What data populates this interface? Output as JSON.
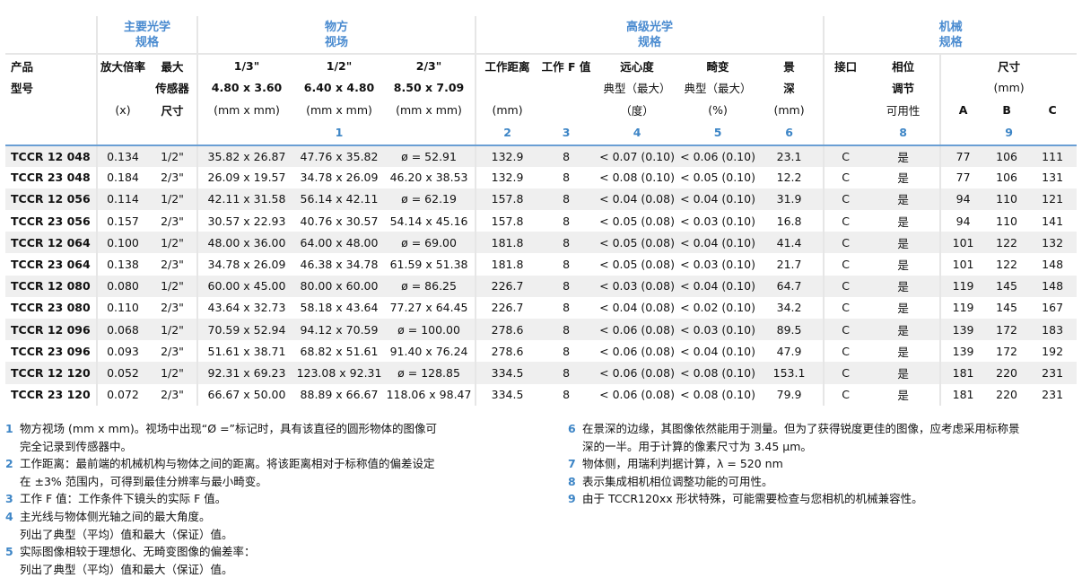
{
  "groups": {
    "optics_main": "主要光学\n规格",
    "field": "物方\n视场",
    "optics_adv": "高级光学\n规格",
    "mech": "机械\n规格"
  },
  "headers": {
    "product": [
      "产品",
      "型号",
      "",
      ""
    ],
    "mag": [
      "放大倍率",
      "",
      "(x)",
      ""
    ],
    "sensor": [
      "最大",
      "传感器",
      "尺寸",
      ""
    ],
    "f13": [
      "1/3\"",
      "4.80 x 3.60",
      "(mm x mm)",
      ""
    ],
    "f12": [
      "1/2\"",
      "6.40 x 4.80",
      "(mm x mm)",
      "1"
    ],
    "f23": [
      "2/3\"",
      "8.50 x 7.09",
      "(mm x mm)",
      ""
    ],
    "wd": [
      "工作距离",
      "",
      "(mm)",
      "2"
    ],
    "fnum": [
      "工作 F 值",
      "",
      "",
      "3"
    ],
    "tele": [
      "远心度",
      "典型（最大）",
      "（度）",
      "4"
    ],
    "dist": [
      "畸变",
      "典型（最大）",
      "(%)",
      "5"
    ],
    "dof": [
      "景",
      "深",
      "(mm)",
      "6"
    ],
    "mount": [
      "接口",
      "",
      "",
      ""
    ],
    "phase": [
      "相位",
      "调节",
      "可用性",
      "8"
    ],
    "dims": [
      "尺寸",
      "(mm)",
      "",
      "9"
    ],
    "dim_cols": [
      "A",
      "B",
      "C"
    ]
  },
  "rows": [
    [
      "TCCR 12 048",
      "0.134",
      "1/2\"",
      "35.82 x 26.87",
      "47.76 x 35.82",
      "ø = 52.91",
      "132.9",
      "8",
      "< 0.07 (0.10)",
      "< 0.06 (0.10)",
      "23.1",
      "C",
      "是",
      "77",
      "106",
      "111"
    ],
    [
      "TCCR 23 048",
      "0.184",
      "2/3\"",
      "26.09 x 19.57",
      "34.78 x 26.09",
      "46.20 x 38.53",
      "132.9",
      "8",
      "< 0.08 (0.10)",
      "< 0.05 (0.10)",
      "12.2",
      "C",
      "是",
      "77",
      "106",
      "131"
    ],
    [
      "TCCR 12 056",
      "0.114",
      "1/2\"",
      "42.11 x 31.58",
      "56.14 x 42.11",
      "ø = 62.19",
      "157.8",
      "8",
      "< 0.04 (0.08)",
      "< 0.04 (0.10)",
      "31.9",
      "C",
      "是",
      "94",
      "110",
      "121"
    ],
    [
      "TCCR 23 056",
      "0.157",
      "2/3\"",
      "30.57 x 22.93",
      "40.76 x 30.57",
      "54.14 x 45.16",
      "157.8",
      "8",
      "< 0.05 (0.08)",
      "< 0.03 (0.10)",
      "16.8",
      "C",
      "是",
      "94",
      "110",
      "141"
    ],
    [
      "TCCR 12 064",
      "0.100",
      "1/2\"",
      "48.00 x 36.00",
      "64.00 x 48.00",
      "ø = 69.00",
      "181.8",
      "8",
      "< 0.05 (0.08)",
      "< 0.04 (0.10)",
      "41.4",
      "C",
      "是",
      "101",
      "122",
      "132"
    ],
    [
      "TCCR 23 064",
      "0.138",
      "2/3\"",
      "34.78 x 26.09",
      "46.38 x 34.78",
      "61.59 x 51.38",
      "181.8",
      "8",
      "< 0.05 (0.08)",
      "< 0.03 (0.10)",
      "21.7",
      "C",
      "是",
      "101",
      "122",
      "148"
    ],
    [
      "TCCR 12 080",
      "0.080",
      "1/2\"",
      "60.00 x 45.00",
      "80.00 x 60.00",
      "ø = 86.25",
      "226.7",
      "8",
      "< 0.03 (0.08)",
      "< 0.04 (0.10)",
      "64.7",
      "C",
      "是",
      "119",
      "145",
      "148"
    ],
    [
      "TCCR 23 080",
      "0.110",
      "2/3\"",
      "43.64 x 32.73",
      "58.18 x 43.64",
      "77.27 x 64.45",
      "226.7",
      "8",
      "< 0.04 (0.08)",
      "< 0.02 (0.10)",
      "34.2",
      "C",
      "是",
      "119",
      "145",
      "167"
    ],
    [
      "TCCR 12 096",
      "0.068",
      "1/2\"",
      "70.59 x 52.94",
      "94.12 x 70.59",
      "ø = 100.00",
      "278.6",
      "8",
      "< 0.06 (0.08)",
      "< 0.03 (0.10)",
      "89.5",
      "C",
      "是",
      "139",
      "172",
      "183"
    ],
    [
      "TCCR 23 096",
      "0.093",
      "2/3\"",
      "51.61 x 38.71",
      "68.82 x 51.61",
      "91.40 x 76.24",
      "278.6",
      "8",
      "< 0.06 (0.08)",
      "< 0.04 (0.10)",
      "47.9",
      "C",
      "是",
      "139",
      "172",
      "192"
    ],
    [
      "TCCR 12 120",
      "0.052",
      "1/2\"",
      "92.31 x 69.23",
      "123.08 x 92.31",
      "ø = 128.85",
      "334.5",
      "8",
      "< 0.06 (0.08)",
      "< 0.08 (0.10)",
      "153.1",
      "C",
      "是",
      "181",
      "220",
      "231"
    ],
    [
      "TCCR 23 120",
      "0.072",
      "2/3\"",
      "66.67 x 50.00",
      "88.89 x 66.67",
      "118.06 x 98.47",
      "334.5",
      "8",
      "< 0.06 (0.08)",
      "< 0.08 (0.10)",
      "79.9",
      "C",
      "是",
      "181",
      "220",
      "231"
    ]
  ],
  "notes_left": [
    {
      "k": "1",
      "t": "物方视场 (mm x mm)。视场中出现“Ø =”标记时，具有该直径的圆形物体的图像可\n完全记录到传感器中。"
    },
    {
      "k": "2",
      "t": "工作距离：最前端的机械机构与物体之间的距离。将该距离相对于标称值的偏差设定\n在 ±3% 范围内，可得到最佳分辨率与最小畸变。"
    },
    {
      "k": "3",
      "t": "工作 F 值：工作条件下镜头的实际 F 值。"
    },
    {
      "k": "4",
      "t": "主光线与物体侧光轴之间的最大角度。\n列出了典型（平均）值和最大（保证）值。"
    },
    {
      "k": "5",
      "t": "实际图像相较于理想化、无畸变图像的偏差率：\n列出了典型（平均）值和最大（保证）值。"
    }
  ],
  "notes_right": [
    {
      "k": "6",
      "t": "在景深的边缘，其图像依然能用于测量。但为了获得锐度更佳的图像，应考虑采用标称景\n深的一半。用于计算的像素尺寸为 3.45 µm。"
    },
    {
      "k": "7",
      "t": "物体侧，用瑞利判据计算，λ = 520 nm"
    },
    {
      "k": "8",
      "t": "表示集成相机相位调整功能的可用性。"
    },
    {
      "k": "9",
      "t": "由于 TCCR120xx 形状特殊，可能需要检查与您相机的机械兼容性。"
    }
  ],
  "colors": {
    "accent": "#4a8bd0",
    "row_stripe": "#efefef",
    "header_rule": "#6a9fd4"
  }
}
